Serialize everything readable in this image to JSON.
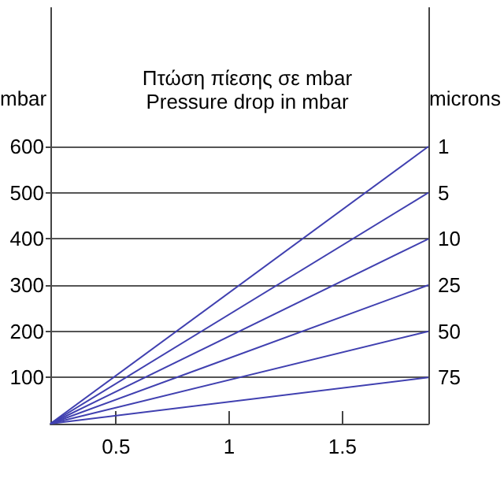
{
  "chart_data": {
    "type": "line",
    "title": "Πτώση πίεσης σε mbar",
    "subtitle": "Pressure drop in mbar",
    "ylabel": "mbar",
    "y2label": "microns",
    "x": [
      0.21,
      1.88
    ],
    "series": [
      {
        "name": "1",
        "color": "#4040b0",
        "values": [
          0,
          600
        ]
      },
      {
        "name": "5",
        "color": "#4040b0",
        "values": [
          0,
          500
        ]
      },
      {
        "name": "10",
        "color": "#4040b0",
        "values": [
          0,
          400
        ]
      },
      {
        "name": "25",
        "color": "#4040b0",
        "values": [
          0,
          300
        ]
      },
      {
        "name": "50",
        "color": "#4040b0",
        "values": [
          0,
          200
        ]
      },
      {
        "name": "75",
        "color": "#4040b0",
        "values": [
          0,
          100
        ]
      }
    ],
    "xlim": [
      0.21,
      1.88
    ],
    "ylim": [
      0,
      900
    ],
    "xticks": [
      0.5,
      1,
      1.5
    ],
    "yticks": [
      100,
      200,
      300,
      400,
      500,
      600
    ],
    "grid": "y",
    "legend": false,
    "marker": "none",
    "line_style": "solid"
  }
}
